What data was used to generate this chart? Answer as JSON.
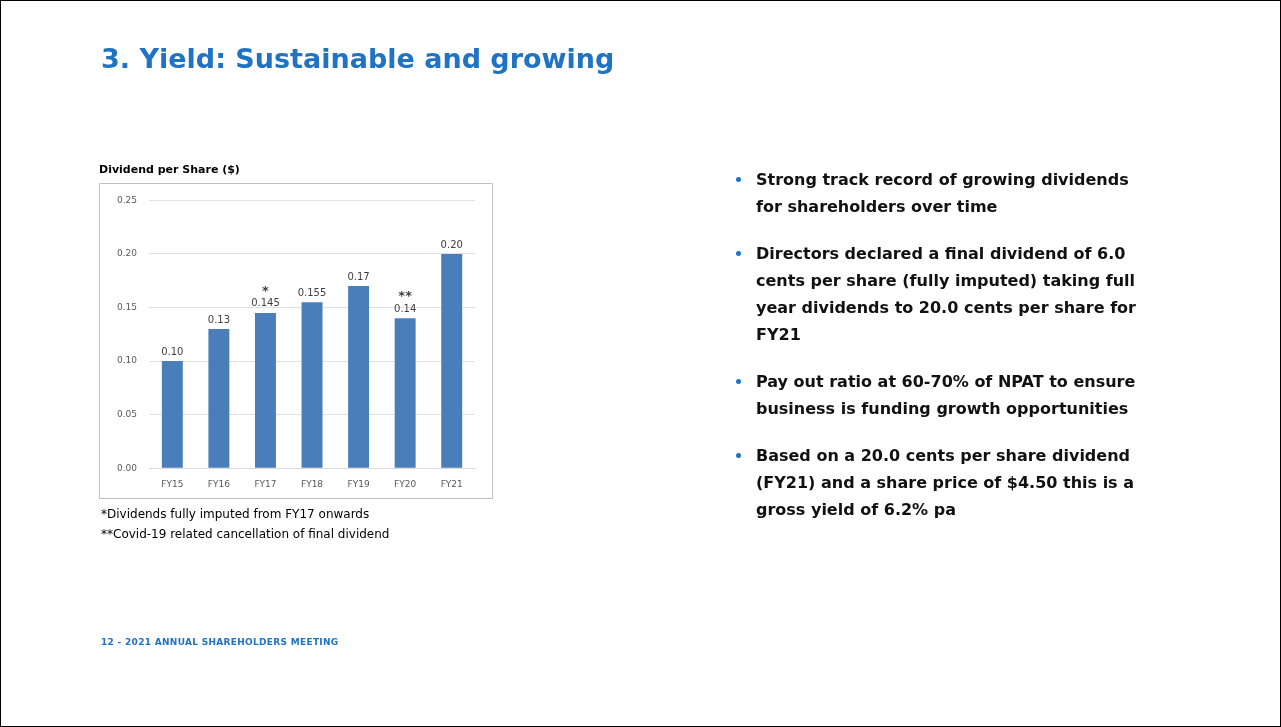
{
  "chart_data": {
    "type": "bar",
    "title": "3. Yield: Sustainable and growing",
    "ylabel": "Dividend per Share ($)",
    "categories": [
      "FY15",
      "FY16",
      "FY17",
      "FY18",
      "FY19",
      "FY20",
      "FY21"
    ],
    "values": [
      0.1,
      0.13,
      0.145,
      0.155,
      0.17,
      0.14,
      0.2
    ],
    "value_labels": [
      "0.10",
      "0.13",
      "0.145",
      "0.155",
      "0.17",
      "0.14",
      "0.20"
    ],
    "color": "#4a7ebb",
    "ylim": [
      0,
      0.25
    ],
    "yticks": [
      {
        "value": 0,
        "label": "0.00"
      },
      {
        "value": 0.05,
        "label": "0.05"
      },
      {
        "value": 0.1,
        "label": "0.10"
      },
      {
        "value": 0.15,
        "label": "0.15"
      },
      {
        "value": 0.2,
        "label": "0.20"
      },
      {
        "value": 0.25,
        "label": "0.25"
      }
    ],
    "grid": "y",
    "legend": false,
    "annotations": [
      {
        "text": "*",
        "x": "FY17",
        "y": 0.145
      },
      {
        "text": "**",
        "x": "FY20",
        "y": 0.14
      },
      "*Dividends fully imputed from FY17 onwards",
      "**Covid-19 related cancellation of final dividend",
      "Strong track record of growing dividends for shareholders over time",
      "Directors declared a final dividend of 6.0 cents per share (fully imputed) taking full year dividends to 20.0 cents per share for FY21",
      "Pay out ratio at 60-70% of NPAT to ensure business is funding growth opportunities",
      "Based on a 20.0 cents per share dividend (FY21) and a share price of $4.50 this is a gross yield of 6.2% pa",
      "12 - 2021 ANNUAL SHAREHOLDERS MEETING"
    ]
  }
}
